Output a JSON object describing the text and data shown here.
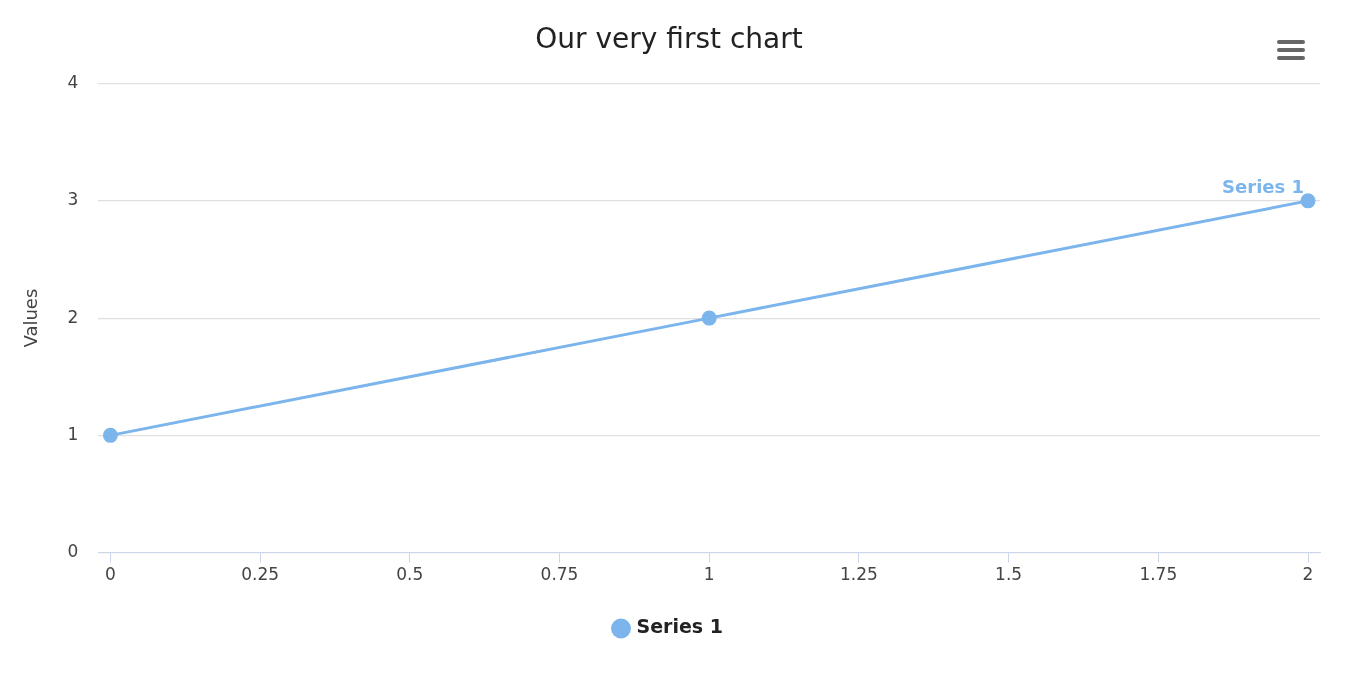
{
  "chart_data": {
    "type": "line",
    "title": "Our very first chart",
    "ylabel": "Values",
    "x": [
      0,
      1,
      2
    ],
    "series": [
      {
        "name": "Series 1",
        "color": "#7cb5ec",
        "values": [
          1,
          2,
          3
        ]
      }
    ],
    "xlim": [
      -0.02,
      2.02
    ],
    "xticks": [
      0,
      0.25,
      0.5,
      0.75,
      1,
      1.25,
      1.5,
      1.75,
      2
    ],
    "ylim": [
      0,
      4
    ],
    "yticks": [
      0,
      1,
      2,
      3,
      4
    ],
    "grid": "y",
    "legend": "bottom",
    "marker": "circle",
    "line_style": "solid"
  }
}
